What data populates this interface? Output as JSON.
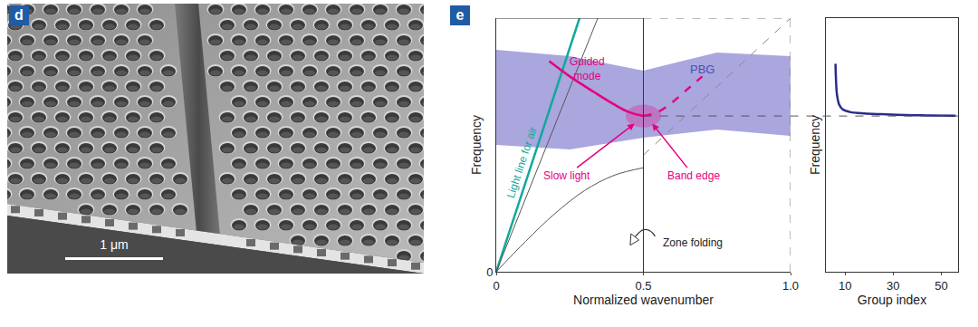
{
  "panel_labels": [
    "d",
    "e"
  ],
  "image": {
    "scale_bar": "1 μm"
  },
  "chart_data": [
    {
      "type": "line",
      "xlabel": "Normalized wavenumber",
      "ylabel": "Frequency",
      "xlim": [
        0,
        1
      ],
      "ylim": [
        0,
        1
      ],
      "xticks": [
        0,
        0.5,
        {
          "value": 1,
          "label": "1.0"
        }
      ],
      "yticks": [
        0
      ],
      "grid": false,
      "series": [
        {
          "type": "band",
          "color": "#aaa6de",
          "x": [
            0,
            0.25,
            0.5,
            0.75,
            1
          ],
          "lower": [
            0.5,
            0.482,
            0.529,
            0.561,
            0.536
          ],
          "upper": [
            0.875,
            0.85,
            0.793,
            0.864,
            0.85
          ]
        },
        {
          "color": "#12a89d",
          "x": [
            0,
            0.283
          ],
          "values": [
            0,
            1
          ]
        },
        {
          "color": "#555555",
          "x": [
            0,
            0.345
          ],
          "values": [
            0,
            1
          ]
        },
        {
          "color": "#555555",
          "x": [
            0,
            0.1,
            0.2,
            0.3,
            0.4,
            0.5
          ],
          "values": [
            0,
            0.12,
            0.23,
            0.32,
            0.38,
            0.41
          ]
        },
        {
          "color": "#888888",
          "line_style": "dashed",
          "x": [
            0.5,
            1
          ],
          "values": [
            0.46,
            1
          ]
        },
        {
          "color": "#e6007e",
          "x": [
            0.18,
            0.25,
            0.33,
            0.4,
            0.45,
            0.5
          ],
          "values": [
            0.83,
            0.77,
            0.71,
            0.66,
            0.63,
            0.614
          ]
        },
        {
          "color": "#e6007e",
          "line_style": "dashed",
          "x": [
            0.5,
            0.55,
            0.6,
            0.65,
            0.7
          ],
          "values": [
            0.614,
            0.63,
            0.67,
            0.72,
            0.77
          ]
        }
      ],
      "band_edge": {
        "x": 0.5,
        "y": 0.614
      },
      "annotations": [
        {
          "text": "Light line for air",
          "color": "#12a89d"
        },
        {
          "text": "Guided\nmode",
          "color": "#e6007e"
        },
        {
          "text": "PBG",
          "color": "#4b4fb8"
        },
        {
          "text": "Slow light",
          "color": "#e6007e"
        },
        {
          "text": "Band edge",
          "color": "#e6007e"
        },
        {
          "text": "Zone folding",
          "color": "#222222"
        }
      ]
    },
    {
      "type": "line",
      "xlabel": "Group index",
      "ylabel": "Frequency",
      "xlim": [
        2,
        57
      ],
      "ylim": [
        0,
        1
      ],
      "xticks": [
        10,
        30,
        50
      ],
      "tick_labels": "x",
      "grid": false,
      "series": [
        {
          "color": "#2b2a8c",
          "x": [
            6,
            6.2,
            6.6,
            7.5,
            9,
            12,
            18,
            25,
            35,
            45,
            56
          ],
          "values": [
            0.82,
            0.76,
            0.7,
            0.66,
            0.64,
            0.63,
            0.624,
            0.621,
            0.618,
            0.616,
            0.615
          ]
        }
      ]
    }
  ]
}
